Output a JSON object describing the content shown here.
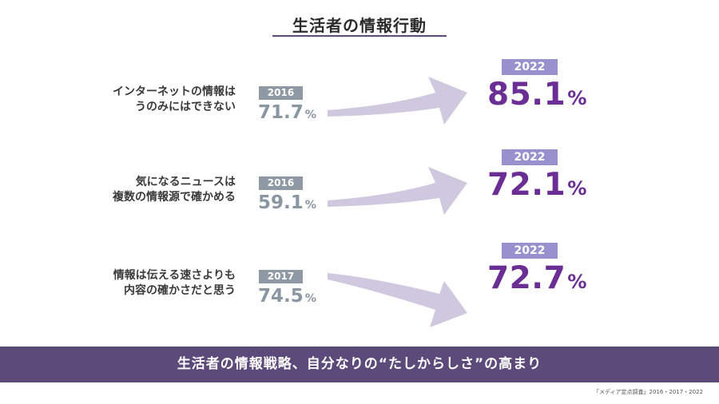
{
  "title": "生活者の情報行動",
  "chart_data": {
    "type": "comparison",
    "unit": "%",
    "items": [
      {
        "label_lines": [
          "インターネットの情報は",
          "うのみにはできない"
        ],
        "old_year": "2016",
        "old_value": 71.7,
        "new_year": "2022",
        "new_value": 85.1,
        "trend": "up"
      },
      {
        "label_lines": [
          "気になるニュースは",
          "複数の情報源で確かめる"
        ],
        "old_year": "2016",
        "old_value": 59.1,
        "new_year": "2022",
        "new_value": 72.1,
        "trend": "up"
      },
      {
        "label_lines": [
          "情報は伝える速さよりも",
          "内容の確かさだと思う"
        ],
        "old_year": "2017",
        "old_value": 74.5,
        "new_year": "2022",
        "new_value": 72.7,
        "trend": "down"
      }
    ]
  },
  "colors": {
    "old_badge": "#8e99a3",
    "new_badge": "#9891cd",
    "new_value": "#6b2e94",
    "arrow": "#cfc8de",
    "banner": "#5c4a7a"
  },
  "banner": "生活者の情報戦略、自分なりの“たしからしさ”の高まり",
  "source": "「メディア定点調査」2016・2017・2022"
}
